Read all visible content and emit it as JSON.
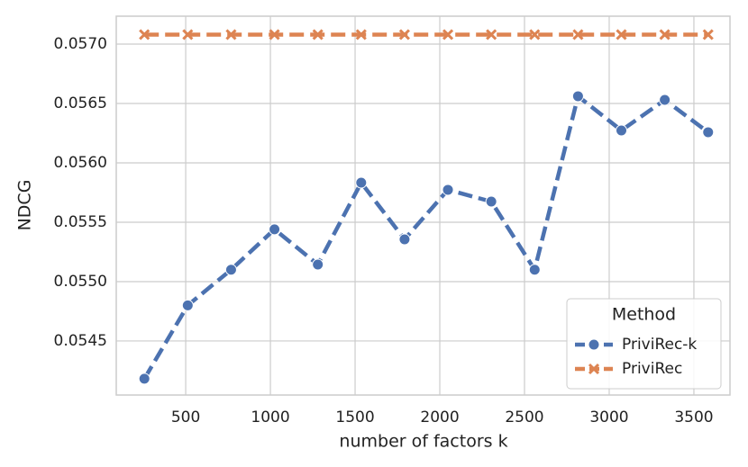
{
  "chart_data": {
    "type": "line",
    "xlabel": "number of factors k",
    "ylabel": "NDCG",
    "x": [
      256,
      512,
      768,
      1024,
      1280,
      1536,
      1792,
      2048,
      2304,
      2560,
      2816,
      3072,
      3328,
      3584
    ],
    "series": [
      {
        "name": "PriviRec-k",
        "color": "#4c72b0",
        "marker": "o",
        "values": [
          0.054182,
          0.0548,
          0.0551,
          0.05544,
          0.055144,
          0.055833,
          0.055356,
          0.055773,
          0.055674,
          0.0551,
          0.056561,
          0.056273,
          0.05653,
          0.056258
        ]
      },
      {
        "name": "PriviRec",
        "color": "#dd8452",
        "marker": "x",
        "values": [
          0.05708,
          0.05708,
          0.05708,
          0.05708,
          0.05708,
          0.05708,
          0.05708,
          0.05708,
          0.05708,
          0.05708,
          0.05708,
          0.05708,
          0.05708,
          0.05708
        ]
      }
    ],
    "xlim": [
      90,
      3713
    ],
    "xticks": [
      500,
      1000,
      1500,
      2000,
      2500,
      3000,
      3500
    ],
    "ylim": [
      0.054045,
      0.057235
    ],
    "yticks": [
      0.0545,
      {
        "value": 0.055,
        "label": "0.0550"
      },
      0.0555,
      {
        "value": 0.056,
        "label": "0.0560"
      },
      0.0565,
      {
        "value": 0.057,
        "label": "0.0570"
      }
    ],
    "grid": true,
    "legend_title": "Method",
    "legend_position": "lower right"
  }
}
